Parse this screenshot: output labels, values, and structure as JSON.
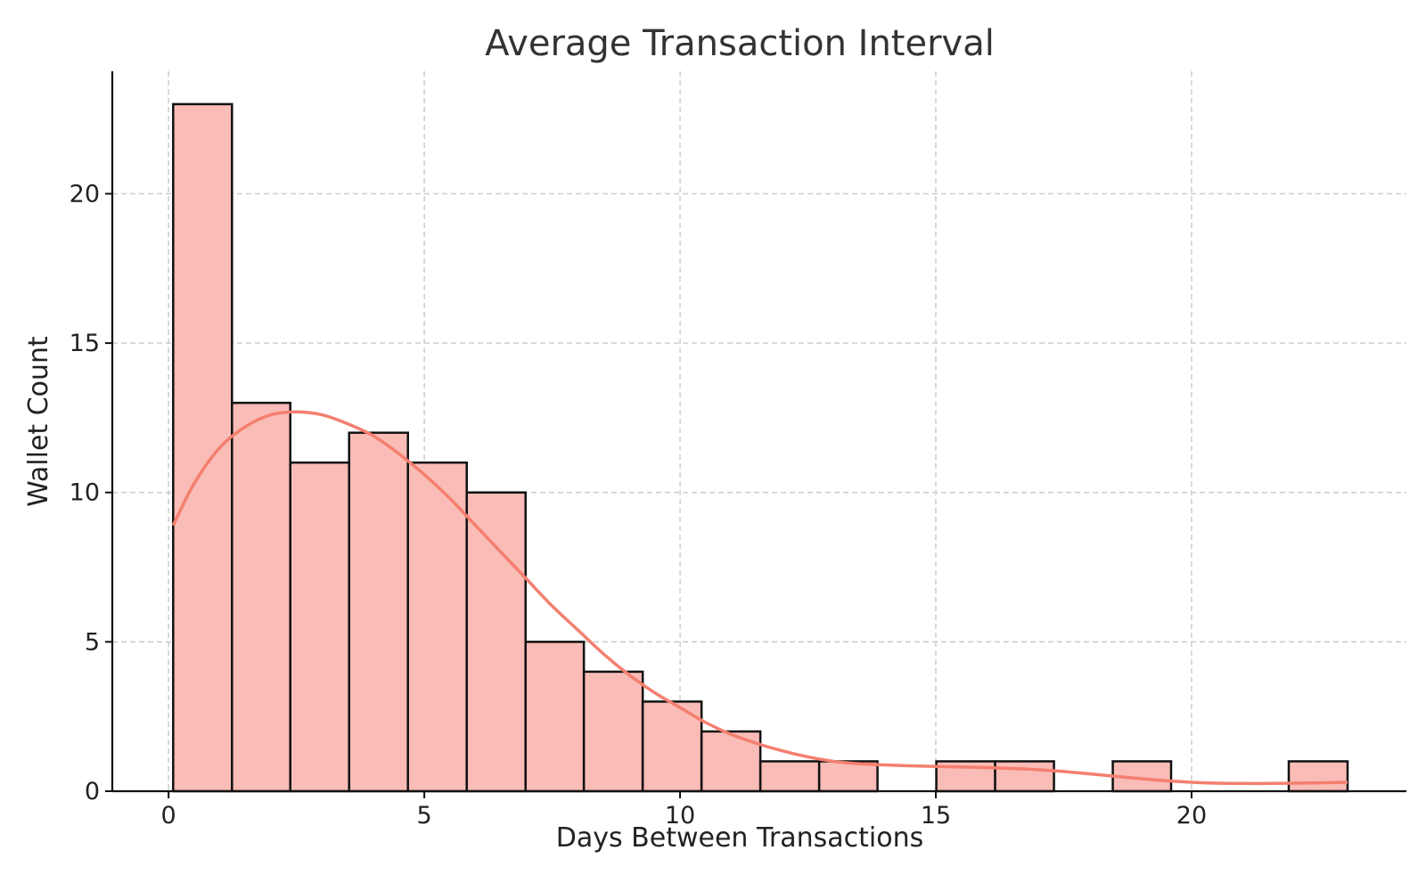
{
  "chart_data": {
    "type": "bar",
    "title": "Average Transaction Interval",
    "xlabel": "Days Between Transactions",
    "ylabel": "Wallet Count",
    "xlim": [
      -1.1,
      24.2
    ],
    "ylim": [
      0,
      24.1
    ],
    "xticks": [
      0,
      5,
      10,
      15,
      20
    ],
    "yticks": [
      0,
      5,
      10,
      15,
      20
    ],
    "grid": true,
    "bins": [
      {
        "x0": 0.09,
        "x1": 1.24,
        "count": 23
      },
      {
        "x0": 1.24,
        "x1": 2.38,
        "count": 13
      },
      {
        "x0": 2.38,
        "x1": 3.53,
        "count": 11
      },
      {
        "x0": 3.53,
        "x1": 4.68,
        "count": 12
      },
      {
        "x0": 4.68,
        "x1": 5.83,
        "count": 11
      },
      {
        "x0": 5.83,
        "x1": 6.98,
        "count": 10
      },
      {
        "x0": 6.98,
        "x1": 8.12,
        "count": 5
      },
      {
        "x0": 8.12,
        "x1": 9.27,
        "count": 4
      },
      {
        "x0": 9.27,
        "x1": 10.42,
        "count": 3
      },
      {
        "x0": 10.42,
        "x1": 11.57,
        "count": 2
      },
      {
        "x0": 11.57,
        "x1": 12.72,
        "count": 1
      },
      {
        "x0": 12.72,
        "x1": 13.86,
        "count": 1
      },
      {
        "x0": 13.86,
        "x1": 15.01,
        "count": 0
      },
      {
        "x0": 15.01,
        "x1": 16.16,
        "count": 1
      },
      {
        "x0": 16.16,
        "x1": 17.31,
        "count": 1
      },
      {
        "x0": 17.31,
        "x1": 18.46,
        "count": 0
      },
      {
        "x0": 18.46,
        "x1": 19.6,
        "count": 1
      },
      {
        "x0": 19.6,
        "x1": 20.75,
        "count": 0
      },
      {
        "x0": 20.75,
        "x1": 21.9,
        "count": 0
      },
      {
        "x0": 21.9,
        "x1": 23.05,
        "count": 1
      }
    ],
    "kde_curve": {
      "x": [
        0.09,
        0.5,
        1.0,
        1.5,
        2.0,
        2.5,
        3.0,
        3.5,
        4.0,
        4.5,
        5.0,
        5.5,
        6.0,
        6.5,
        7.0,
        7.5,
        8.0,
        8.5,
        9.0,
        9.5,
        10.0,
        10.5,
        11.0,
        11.5,
        12.0,
        12.5,
        13.0,
        13.5,
        14.0,
        14.5,
        15.0,
        15.5,
        16.0,
        16.5,
        17.0,
        17.5,
        18.0,
        18.5,
        19.0,
        19.5,
        20.0,
        20.5,
        21.0,
        21.5,
        22.0,
        22.5,
        23.05
      ],
      "y": [
        8.9,
        10.3,
        11.5,
        12.2,
        12.6,
        12.7,
        12.6,
        12.3,
        11.9,
        11.3,
        10.6,
        9.8,
        8.9,
        8.0,
        7.1,
        6.2,
        5.4,
        4.6,
        3.9,
        3.3,
        2.8,
        2.3,
        1.9,
        1.6,
        1.35,
        1.15,
        1.0,
        0.92,
        0.88,
        0.85,
        0.83,
        0.81,
        0.79,
        0.76,
        0.72,
        0.66,
        0.58,
        0.5,
        0.42,
        0.35,
        0.3,
        0.27,
        0.26,
        0.26,
        0.27,
        0.28,
        0.3
      ]
    },
    "colors": {
      "bar_fill": "#fabcb6",
      "bar_edge": "#111111",
      "kde_line": "#f47f6f"
    }
  }
}
